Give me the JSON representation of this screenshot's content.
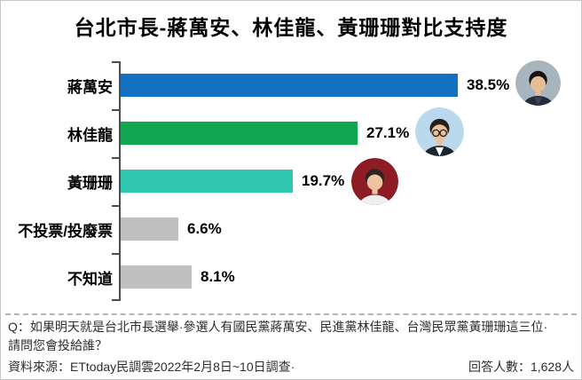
{
  "title": "台北市長-蔣萬安、林佳龍、黃珊珊對比支持度",
  "chart_data": {
    "type": "bar",
    "orientation": "horizontal",
    "title": "台北市長-蔣萬安、林佳龍、黃珊珊對比支持度",
    "categories": [
      "蔣萬安",
      "林佳龍",
      "黃珊珊",
      "不投票/投廢票",
      "不知道"
    ],
    "values": [
      38.5,
      27.1,
      19.7,
      6.6,
      8.1
    ],
    "value_labels": [
      "38.5%",
      "27.1%",
      "19.7%",
      "6.6%",
      "8.1%"
    ],
    "bar_colors": [
      "#1371c0",
      "#0fa64f",
      "#2ec6af",
      "#bfbfbf",
      "#bfbfbf"
    ],
    "axis_color": "#4d4d4d",
    "xlim": [
      0,
      40
    ],
    "grid": false,
    "legend": "none",
    "annotations": "circular candidate photos beside the top three bars"
  },
  "candidates": [
    {
      "name": "蔣萬安",
      "photo": {
        "bg": "#a9b5be",
        "hair": "#171310",
        "skin": "#e7bd96",
        "suit": "#232b38",
        "shirt": "#3b4454",
        "glasses": false
      }
    },
    {
      "name": "林佳龍",
      "photo": {
        "bg": "#bad9ee",
        "hair": "#26201c",
        "skin": "#eac09a",
        "suit": "#1c2430",
        "shirt": "#ffffff",
        "glasses": true
      }
    },
    {
      "name": "黃珊珊",
      "photo": {
        "bg": "#8e1c24",
        "hair": "#2d2521",
        "skin": "#eec4a0",
        "suit": "#efefef",
        "shirt": "#efefef",
        "glasses": false
      }
    }
  ],
  "footer": {
    "question_line1": "Q：如果明天就是台北市長選舉·參選人有國民黨蔣萬安、民進黨林佳龍、台灣民眾黨黃珊珊這三位·",
    "question_line2": "請問您會投給誰？",
    "source": "資料來源：ETtoday民調雲2022年2月8日~10日調查·",
    "respondents_label": "回答人數：1,628人"
  }
}
